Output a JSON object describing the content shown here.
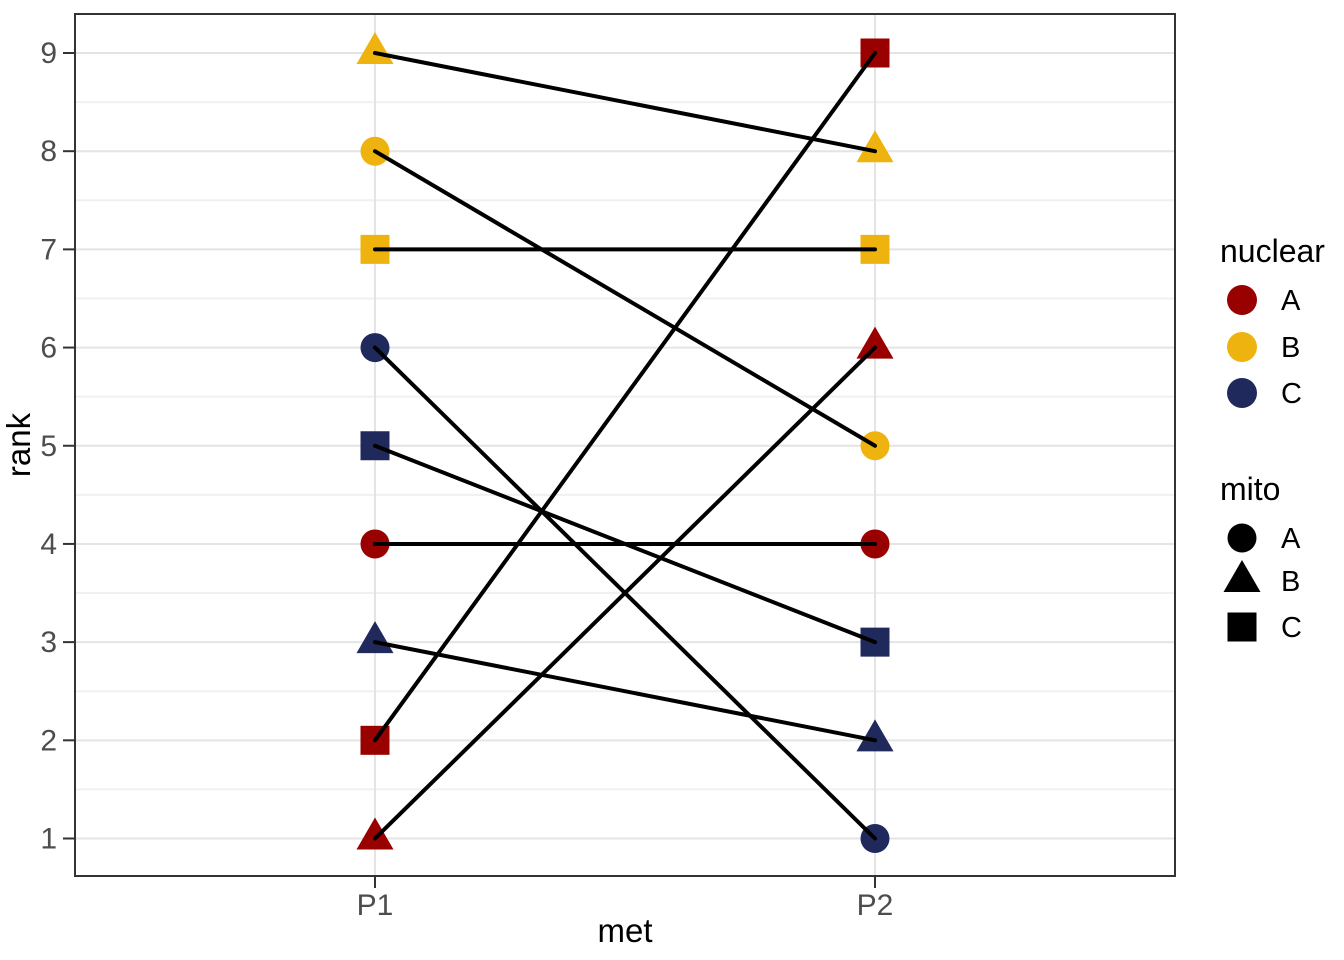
{
  "chart_data": {
    "type": "line",
    "subtype": "slope-chart-with-points",
    "title": "",
    "xlabel": "met",
    "ylabel": "rank",
    "x_categories": [
      "P1",
      "P2"
    ],
    "y_ticks": [
      "1",
      "2",
      "3",
      "4",
      "5",
      "6",
      "7",
      "8",
      "9"
    ],
    "ylim": [
      0.6,
      9.4
    ],
    "grid": "horizontal major at each rank, horizontal minor at half ranks, vertical major at P1 and P2",
    "legend_position": "right",
    "line_color": "#000000",
    "palette": {
      "A": "#990000",
      "B": "#EFB30F",
      "C": "#20295C"
    },
    "series": [
      {
        "nuclear": "A",
        "mito": "A",
        "shape": "circle",
        "values": [
          4,
          4
        ]
      },
      {
        "nuclear": "A",
        "mito": "B",
        "shape": "triangle",
        "values": [
          1,
          6
        ]
      },
      {
        "nuclear": "A",
        "mito": "C",
        "shape": "square",
        "values": [
          2,
          9
        ]
      },
      {
        "nuclear": "B",
        "mito": "A",
        "shape": "circle",
        "values": [
          8,
          5
        ]
      },
      {
        "nuclear": "B",
        "mito": "B",
        "shape": "triangle",
        "values": [
          9,
          8
        ]
      },
      {
        "nuclear": "B",
        "mito": "C",
        "shape": "square",
        "values": [
          7,
          7
        ]
      },
      {
        "nuclear": "C",
        "mito": "A",
        "shape": "circle",
        "values": [
          6,
          1
        ]
      },
      {
        "nuclear": "C",
        "mito": "B",
        "shape": "triangle",
        "values": [
          3,
          2
        ]
      },
      {
        "nuclear": "C",
        "mito": "C",
        "shape": "square",
        "values": [
          5,
          3
        ]
      }
    ],
    "legend": {
      "color_legend": {
        "title": "nuclear",
        "entries": [
          {
            "label": "A",
            "color": "#990000"
          },
          {
            "label": "B",
            "color": "#EFB30F"
          },
          {
            "label": "C",
            "color": "#20295C"
          }
        ]
      },
      "shape_legend": {
        "title": "mito",
        "key_color": "#000000",
        "entries": [
          {
            "label": "A",
            "shape": "circle"
          },
          {
            "label": "B",
            "shape": "triangle"
          },
          {
            "label": "C",
            "shape": "square"
          }
        ]
      }
    }
  }
}
